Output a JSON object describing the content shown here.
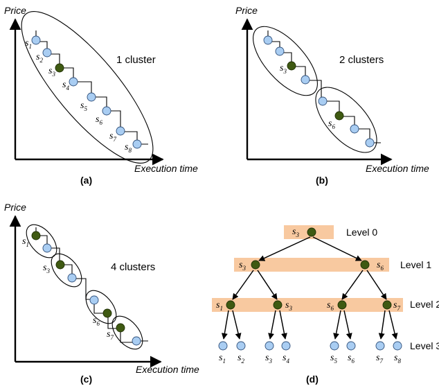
{
  "axes": {
    "price": "Price",
    "execution_time": "Execution time"
  },
  "panels": [
    {
      "caption": "(a)",
      "cluster_label": "1 cluster",
      "labels": [
        {
          "s": "s",
          "sub": "1"
        },
        {
          "s": "s",
          "sub": "2"
        },
        {
          "s": "s",
          "sub": "3"
        },
        {
          "s": "s",
          "sub": "4"
        },
        {
          "s": "s",
          "sub": "5"
        },
        {
          "s": "s",
          "sub": "6"
        },
        {
          "s": "s",
          "sub": "7"
        },
        {
          "s": "s",
          "sub": "8"
        }
      ],
      "dark_nodes": [
        3
      ]
    },
    {
      "caption": "(b)",
      "cluster_label": "2 clusters",
      "labels": [
        {
          "s": "s",
          "sub": "3"
        },
        {
          "s": "s",
          "sub": "6"
        }
      ],
      "dark_nodes": [
        3,
        6
      ]
    },
    {
      "caption": "(c)",
      "cluster_label": "4 clusters",
      "labels": [
        {
          "s": "s",
          "sub": "1"
        },
        {
          "s": "s",
          "sub": "3"
        },
        {
          "s": "s",
          "sub": "6"
        },
        {
          "s": "s",
          "sub": "7"
        }
      ],
      "dark_nodes": [
        1,
        3,
        6,
        7
      ]
    },
    {
      "caption": "(d)",
      "levels": [
        "Level 0",
        "Level 1",
        "Level 2",
        "Level 3"
      ],
      "level0_nodes": [
        {
          "s": "s",
          "sub": "3"
        }
      ],
      "level1_nodes": [
        {
          "s": "s",
          "sub": "3"
        },
        {
          "s": "s",
          "sub": "6"
        }
      ],
      "level2_nodes": [
        {
          "s": "s",
          "sub": "1"
        },
        {
          "s": "s",
          "sub": "3"
        },
        {
          "s": "s",
          "sub": "6"
        },
        {
          "s": "s",
          "sub": "7"
        }
      ],
      "level3_nodes": [
        {
          "s": "s",
          "sub": "1"
        },
        {
          "s": "s",
          "sub": "2"
        },
        {
          "s": "s",
          "sub": "3"
        },
        {
          "s": "s",
          "sub": "4"
        },
        {
          "s": "s",
          "sub": "5"
        },
        {
          "s": "s",
          "sub": "6"
        },
        {
          "s": "s",
          "sub": "7"
        },
        {
          "s": "s",
          "sub": "8"
        }
      ]
    }
  ],
  "colors": {
    "light_node": "#a9cdf2",
    "dark_node": "#3f5a12",
    "level_band": "#f8c9a0"
  }
}
